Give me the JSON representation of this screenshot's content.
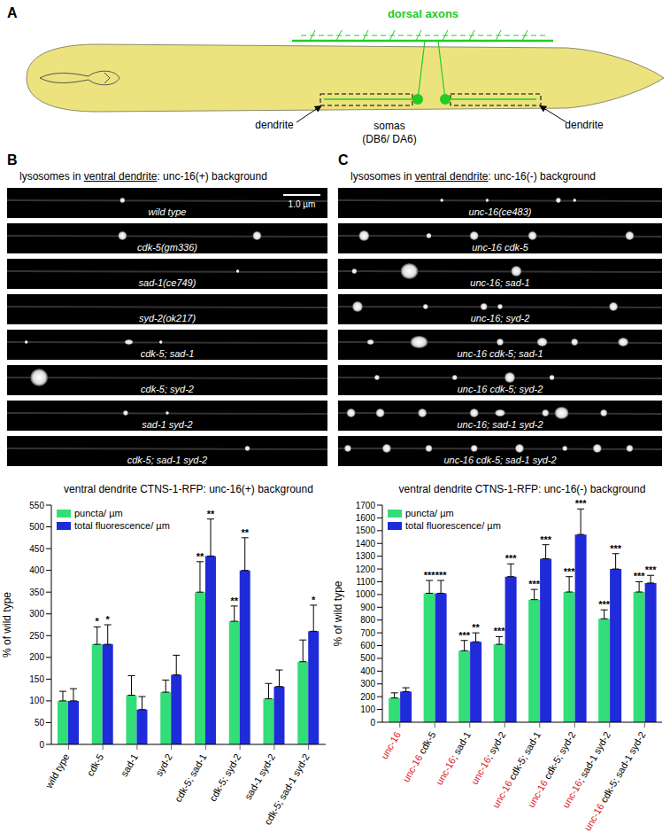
{
  "panel_a": {
    "label": "A",
    "dorsal_label": "dorsal axons",
    "dendrite_left": "dendrite",
    "somas_label": "somas",
    "somas_sub": "(DB6/ DA6)",
    "dendrite_right": "dendrite"
  },
  "panel_b": {
    "label": "B",
    "title": "lysosomes in ventral dendrite: unc-16(+) background",
    "underlined": "ventral dendrite",
    "scale_bar": "1.0 µm",
    "rows": [
      "wild type",
      "cdk-5(gm336)",
      "sad-1(ce749)",
      "syd-2(ok217)",
      "cdk-5; sad-1",
      "cdk-5; syd-2",
      "sad-1 syd-2",
      "cdk-5; sad-1 syd-2"
    ]
  },
  "panel_c": {
    "label": "C",
    "title": "lysosomes in ventral dendrite: unc-16(-) background",
    "underlined": "ventral dendrite",
    "rows": [
      "unc-16(ce483)",
      "unc-16 cdk-5",
      "unc-16; sad-1",
      "unc-16; syd-2",
      "unc-16 cdk-5; sad-1",
      "unc-16 cdk-5; syd-2",
      "unc-16; sad-1 syd-2",
      "unc-16 cdk-5; sad-1 syd-2"
    ]
  },
  "chart_data": [
    {
      "type": "bar",
      "title": "ventral dendrite CTNS-1-RFP: unc-16(+) background",
      "y_label": "% of wild type",
      "categories": [
        "wild type",
        "cdk-5",
        "sad-1",
        "syd-2",
        "cdk-5; sad-1",
        "cdk-5; syd-2",
        "sad-1 syd-2",
        "cdk-5; sad-1 syd-2"
      ],
      "series": [
        {
          "name": "puncta/ µm",
          "color": "#33dd77",
          "values": [
            100,
            230,
            113,
            120,
            350,
            283,
            105,
            190
          ],
          "errors": [
            22,
            40,
            45,
            28,
            70,
            35,
            35,
            50
          ],
          "significance": [
            null,
            "*",
            null,
            null,
            "**",
            "**",
            null,
            null
          ]
        },
        {
          "name": "total fluorescence/ µm",
          "color": "#1f2bd8",
          "values": [
            100,
            230,
            80,
            160,
            433,
            400,
            133,
            260
          ],
          "errors": [
            28,
            45,
            30,
            45,
            85,
            75,
            38,
            60
          ],
          "significance": [
            null,
            "*",
            null,
            null,
            "**",
            "**",
            null,
            "*"
          ]
        }
      ],
      "ylim": [
        0,
        550
      ],
      "yticks": [
        0,
        50,
        100,
        150,
        200,
        250,
        300,
        350,
        400,
        450,
        500,
        550
      ],
      "legend": "upper left"
    },
    {
      "type": "bar",
      "title": "ventral dendrite CTNS-1-RFP: unc-16(-) background",
      "y_label": "% of wild type",
      "categories": [
        "unc-16",
        "unc-16 cdk-5",
        "unc-16; sad-1",
        "unc-16; syd-2",
        "unc-16 cdk-5; sad-1",
        "unc-16 cdk-5; syd-2",
        "unc-16; sad-1 syd-2",
        "unc-16 cdk-5; sad-1 syd-2"
      ],
      "series": [
        {
          "name": "puncta/ µm",
          "color": "#33dd77",
          "values": [
            190,
            1010,
            560,
            610,
            960,
            1020,
            810,
            1020
          ],
          "errors": [
            40,
            100,
            80,
            60,
            80,
            120,
            70,
            80
          ],
          "significance": [
            null,
            "***",
            "***",
            "***",
            "***",
            "***",
            "***",
            "***"
          ]
        },
        {
          "name": "total fluorescence/ µm",
          "color": "#1f2bd8",
          "values": [
            240,
            1010,
            630,
            1140,
            1280,
            1470,
            1200,
            1090
          ],
          "errors": [
            30,
            100,
            70,
            100,
            110,
            200,
            120,
            60
          ],
          "significance": [
            null,
            "***",
            "**",
            "***",
            "***",
            "***",
            "***",
            "***"
          ]
        }
      ],
      "ylim": [
        0,
        1700
      ],
      "yticks": [
        0,
        100,
        200,
        300,
        400,
        500,
        600,
        700,
        800,
        900,
        1000,
        1100,
        1200,
        1300,
        1400,
        1500,
        1600,
        1700
      ],
      "legend": "upper left"
    }
  ]
}
